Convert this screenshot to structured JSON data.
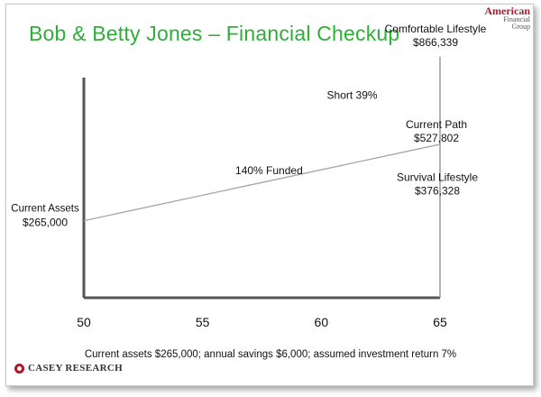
{
  "title": "Bob & Betty Jones – Financial Checkup",
  "logo_top": {
    "line1": "American",
    "line2": "Financial",
    "line3": "Group"
  },
  "logo_bottom": {
    "text": "CASEY RESEARCH"
  },
  "footnote": "Current assets $265,000;  annual savings $6,000; assumed investment return 7%",
  "chart_data": {
    "type": "line",
    "title": "Bob & Betty Jones – Financial Checkup",
    "xlabel": "",
    "ylabel": "",
    "x_ticks": [
      50,
      55,
      60,
      65
    ],
    "xlim": [
      50,
      65
    ],
    "ylim": [
      0,
      900000
    ],
    "grid": false,
    "series": [
      {
        "name": "",
        "x": [
          50,
          65
        ],
        "y": [
          265000,
          527802
        ]
      }
    ],
    "points": [
      {
        "label": "Current Assets",
        "value_label": "$265,000",
        "x": 50,
        "y": 265000
      },
      {
        "label": "Current Path",
        "value_label": "$527,802",
        "x": 65,
        "y": 527802
      },
      {
        "label": "Comfortable Lifestyle",
        "value_label": "$866,339",
        "x": 65,
        "y": 866339
      },
      {
        "label": "Survival Lifestyle",
        "value_label": "$376,328",
        "x": 65,
        "y": 376328
      }
    ],
    "annotations": [
      {
        "text": "140%  Funded"
      },
      {
        "text": "Short  39%"
      }
    ]
  }
}
